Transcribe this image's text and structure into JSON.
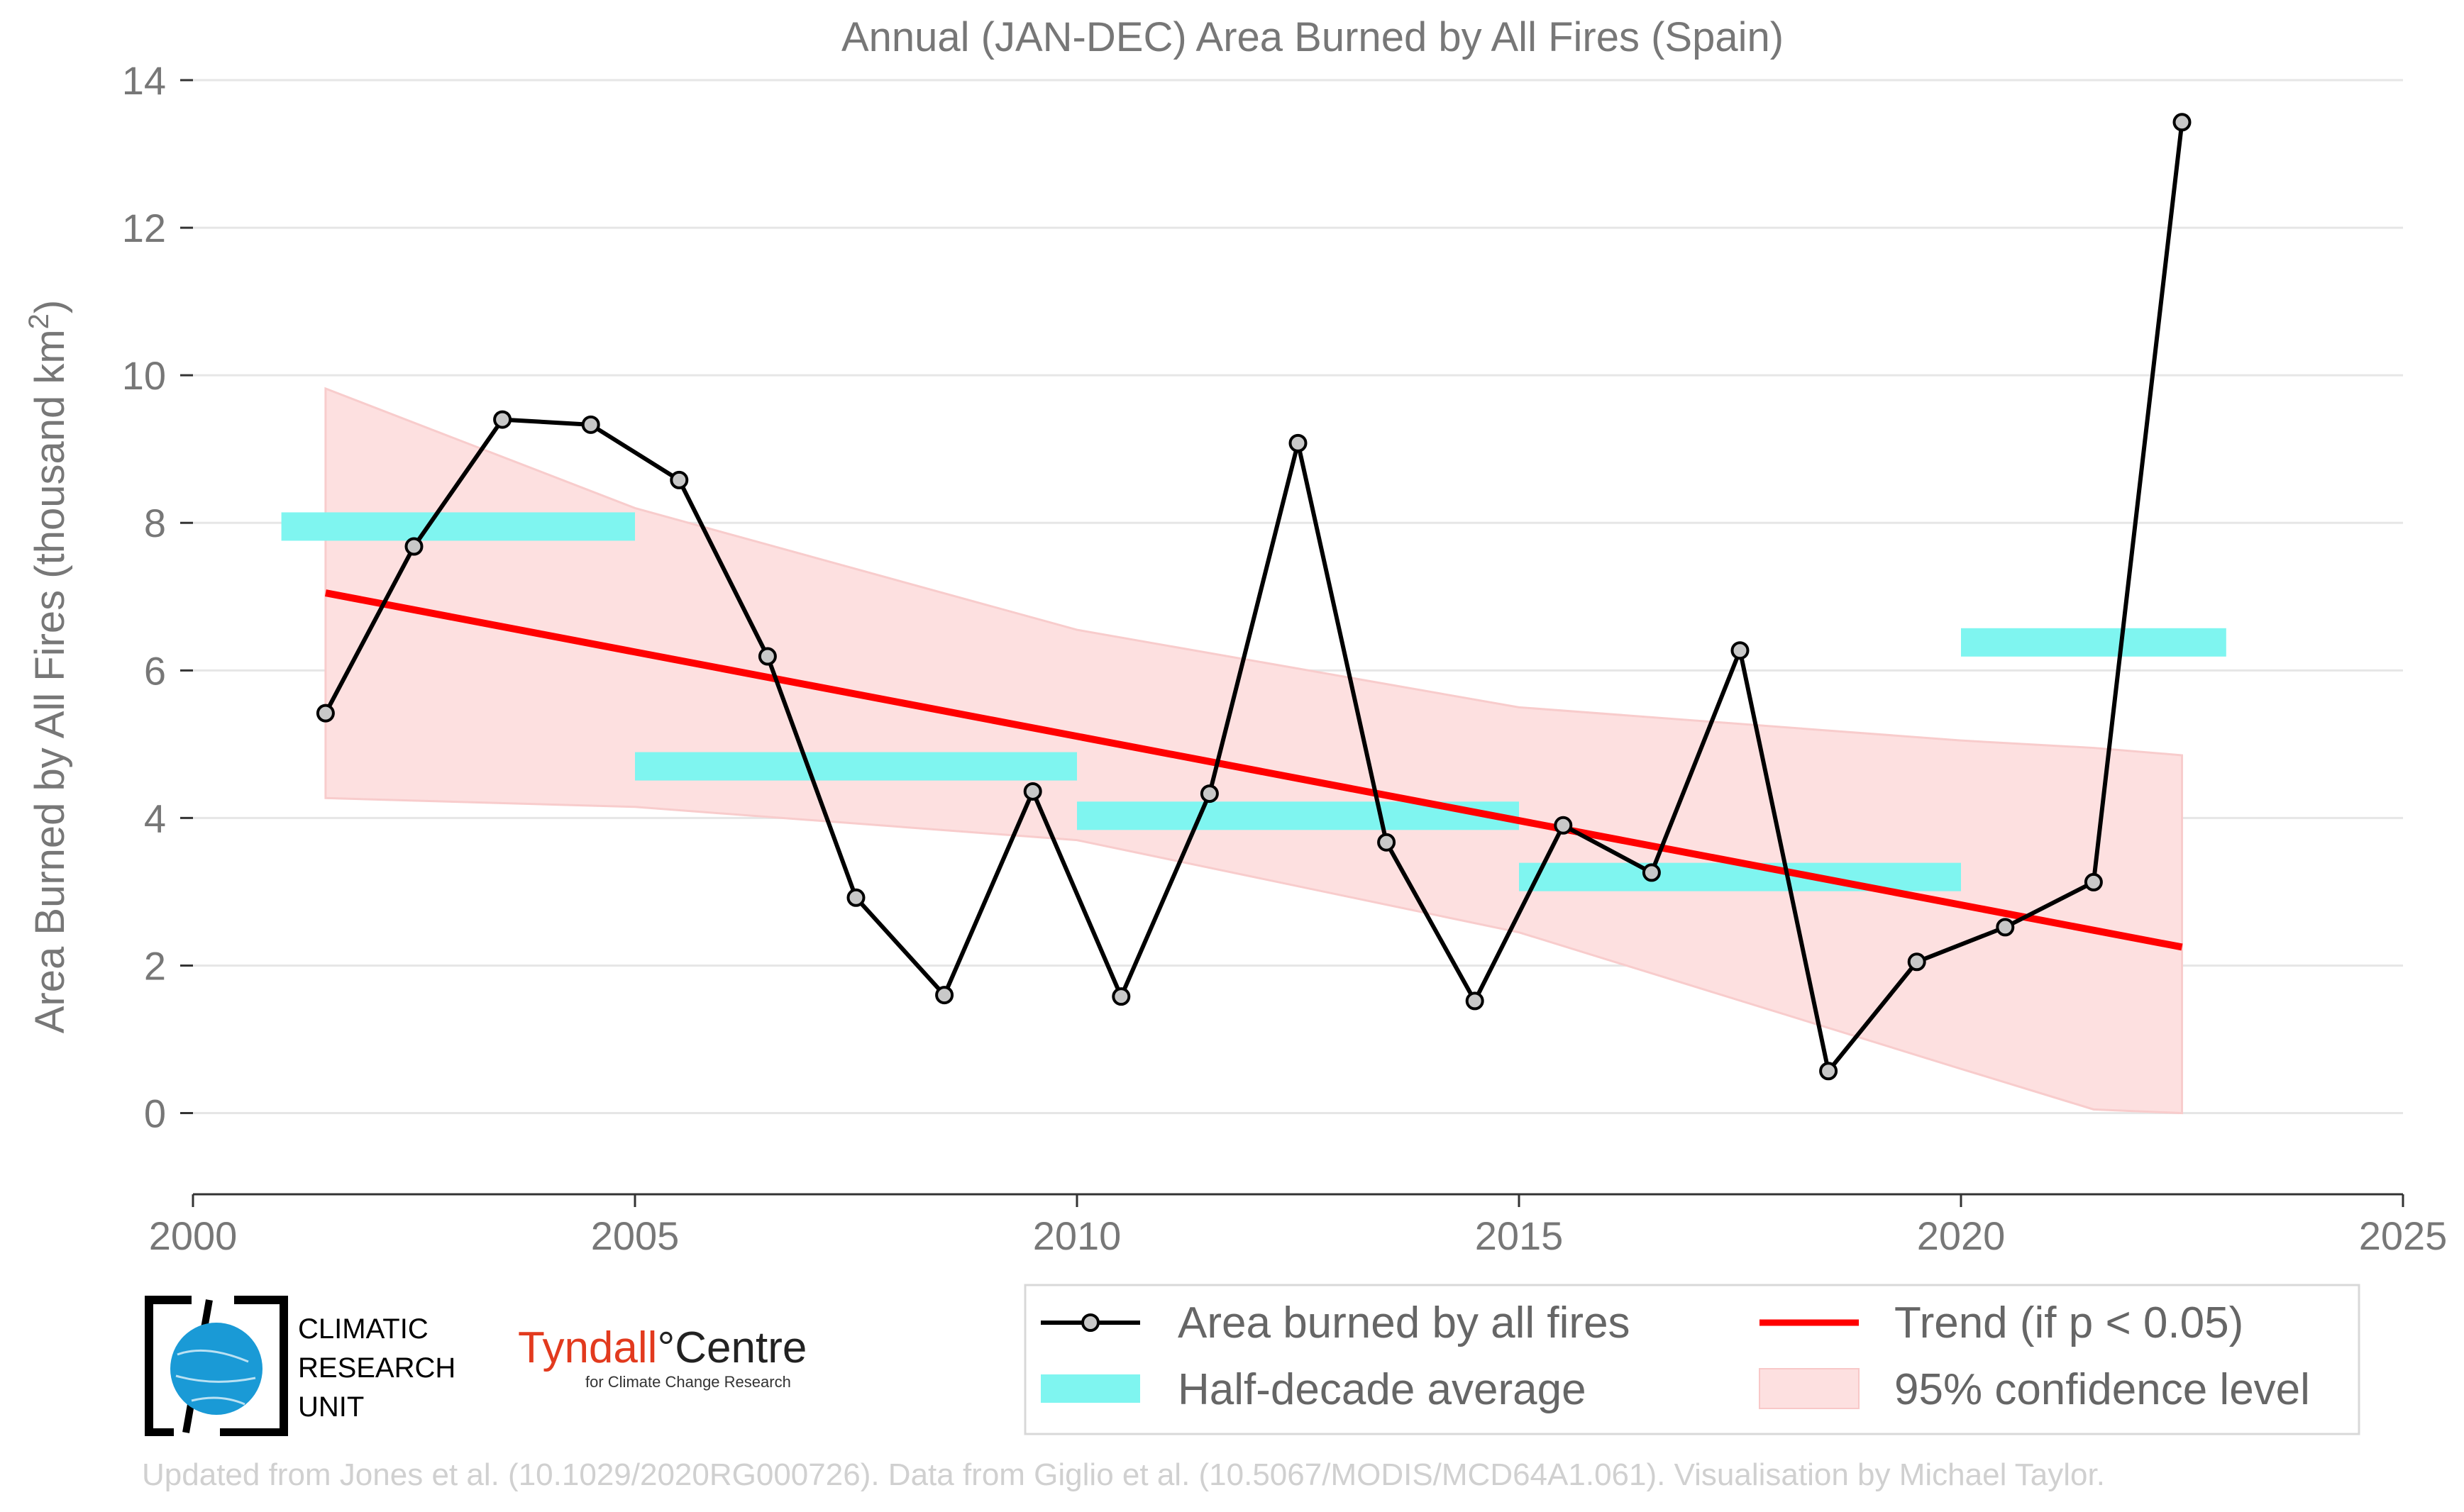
{
  "chart_data": {
    "type": "line",
    "title": "Annual (JAN-DEC) Area Burned by All Fires (Spain)",
    "xlabel": "",
    "ylabel": "Area Burned by All Fires (thousand km",
    "ylabel_sup": "2",
    "ylabel_close": ")",
    "xlim": [
      2000,
      2025
    ],
    "ylim": [
      -1.1,
      14
    ],
    "xticks": [
      2000,
      2005,
      2010,
      2015,
      2020,
      2025
    ],
    "yticks": [
      0,
      2,
      4,
      6,
      8,
      10,
      12,
      14
    ],
    "grid": "horizontal",
    "legend_position": "bottom-right",
    "series": [
      {
        "name": "Area burned by all fires",
        "kind": "line-markers",
        "color": "#000000",
        "marker_fill": "#c8c8c8",
        "x": [
          2001.5,
          2002.5,
          2003.5,
          2004.5,
          2005.5,
          2006.5,
          2007.5,
          2008.5,
          2009.5,
          2010.5,
          2011.5,
          2012.5,
          2013.5,
          2014.5,
          2015.5,
          2016.5,
          2017.5,
          2018.5,
          2019.5,
          2020.5,
          2021.5,
          2022.5
        ],
        "y": [
          5.42,
          7.68,
          9.4,
          9.33,
          8.58,
          6.19,
          2.92,
          1.6,
          4.36,
          1.58,
          4.33,
          9.08,
          3.67,
          1.52,
          3.9,
          3.26,
          6.27,
          0.57,
          2.05,
          2.52,
          3.13,
          13.43
        ]
      },
      {
        "name": "Half-decade average",
        "kind": "segments",
        "color": "#7ff5f0",
        "segments": [
          {
            "x0": 2001,
            "x1": 2005,
            "y": 7.95
          },
          {
            "x0": 2005,
            "x1": 2010,
            "y": 4.7
          },
          {
            "x0": 2010,
            "x1": 2015,
            "y": 4.03
          },
          {
            "x0": 2015,
            "x1": 2020,
            "y": 3.2
          },
          {
            "x0": 2020,
            "x1": 2023,
            "y": 6.38
          }
        ]
      },
      {
        "name": "Trend (if p < 0.05)",
        "kind": "trend",
        "color": "#ff0000",
        "x": [
          2001.5,
          2022.5
        ],
        "y": [
          7.05,
          2.25
        ]
      },
      {
        "name": "95% confidence level",
        "kind": "band",
        "color": "#fde0e0",
        "x": [
          2001.5,
          2005,
          2010,
          2015,
          2020,
          2021.5,
          2022.5
        ],
        "upper": [
          9.82,
          8.2,
          6.55,
          5.5,
          5.05,
          4.95,
          4.85
        ],
        "lower": [
          4.27,
          4.15,
          3.7,
          2.45,
          0.6,
          0.05,
          0.0
        ]
      }
    ]
  },
  "logos": {
    "cru_lines": [
      "CLIMATIC",
      "RESEARCH",
      "UNIT"
    ],
    "tyndall_part1": "Tyndall",
    "tyndall_part2": "°Centre",
    "tyndall_sub": "for Climate Change Research"
  },
  "footer": "Updated from Jones et al. (10.1029/2020RG000726). Data from Giglio et al. (10.5067/MODIS/MCD64A1.061). Visualisation by Michael Taylor."
}
